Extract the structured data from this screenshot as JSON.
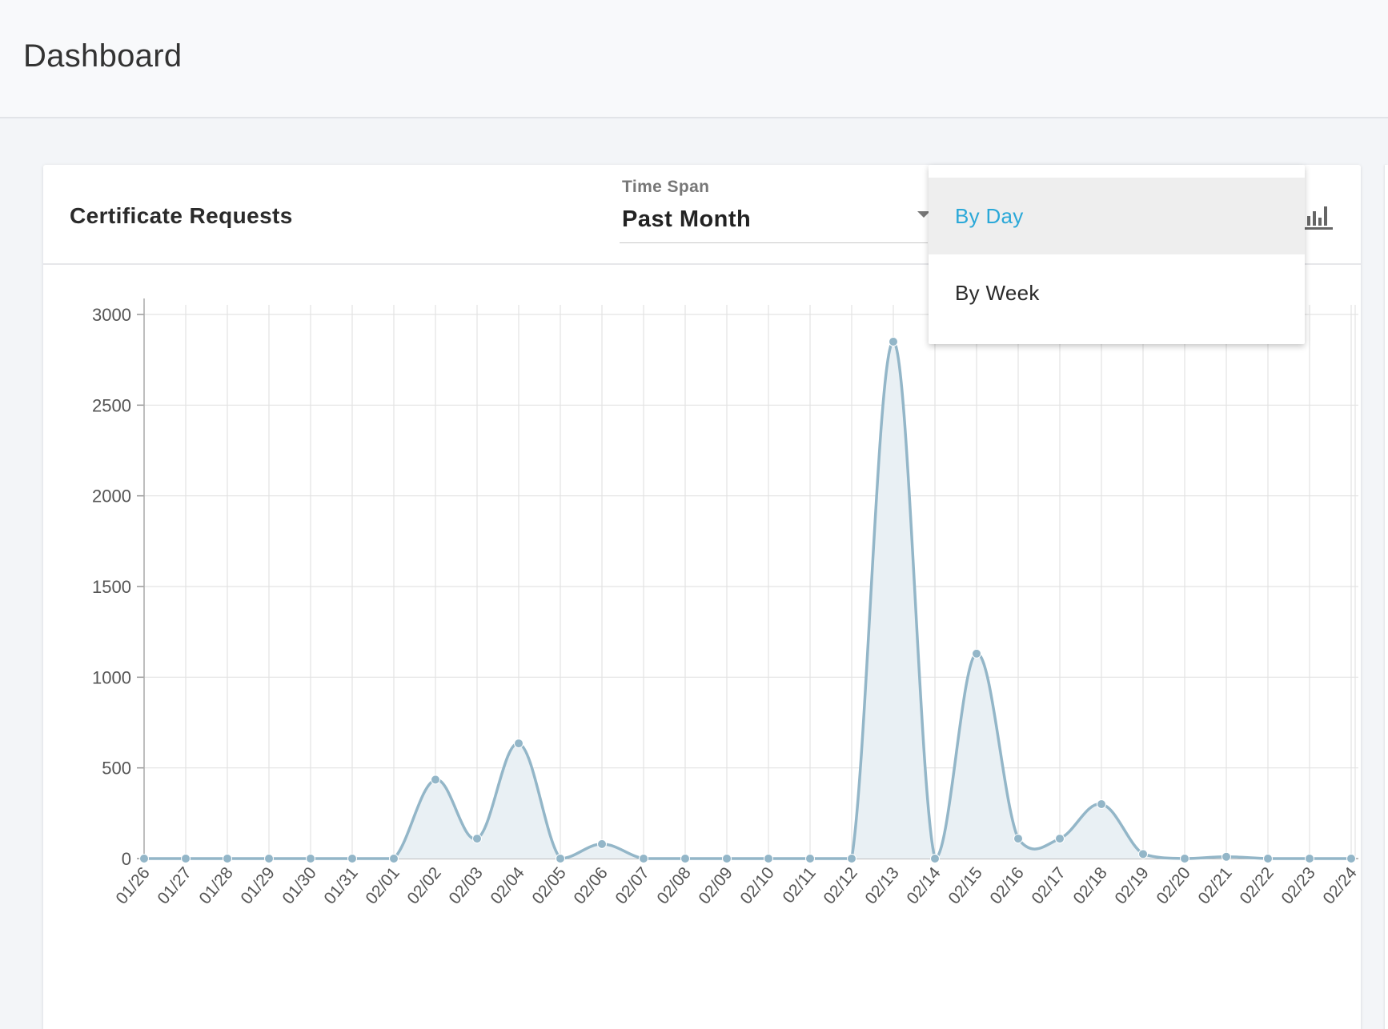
{
  "header": {
    "title": "Dashboard"
  },
  "card": {
    "title": "Certificate Requests",
    "timespan": {
      "label": "Time Span",
      "value": "Past Month"
    },
    "chart_type_icon": "bar-chart-icon"
  },
  "dropdown": {
    "items": [
      {
        "label": "By Day",
        "selected": true
      },
      {
        "label": "By Week",
        "selected": false
      }
    ],
    "selected_color": "#2aa8d8"
  },
  "colors": {
    "line": "#93b6c8",
    "fill": "#e9f0f4",
    "grid": "#e3e3e3"
  },
  "chart_data": {
    "type": "area",
    "x": [
      "01/26",
      "01/27",
      "01/28",
      "01/29",
      "01/30",
      "01/31",
      "02/01",
      "02/02",
      "02/03",
      "02/04",
      "02/05",
      "02/06",
      "02/07",
      "02/08",
      "02/09",
      "02/10",
      "02/11",
      "02/12",
      "02/13",
      "02/14",
      "02/15",
      "02/16",
      "02/17",
      "02/18",
      "02/19",
      "02/20",
      "02/21",
      "02/22",
      "02/23",
      "02/24"
    ],
    "series": [
      {
        "values": [
          0,
          0,
          0,
          0,
          0,
          0,
          0,
          435,
          110,
          635,
          0,
          80,
          0,
          0,
          0,
          0,
          0,
          0,
          2850,
          0,
          1130,
          110,
          110,
          300,
          25,
          0,
          10,
          0,
          0,
          0
        ]
      }
    ],
    "yticks": [
      0,
      500,
      1000,
      1500,
      2000,
      2500,
      3000
    ],
    "ylim": [
      0,
      3000
    ],
    "grid": true,
    "title": "",
    "xlabel": "",
    "ylabel": ""
  }
}
